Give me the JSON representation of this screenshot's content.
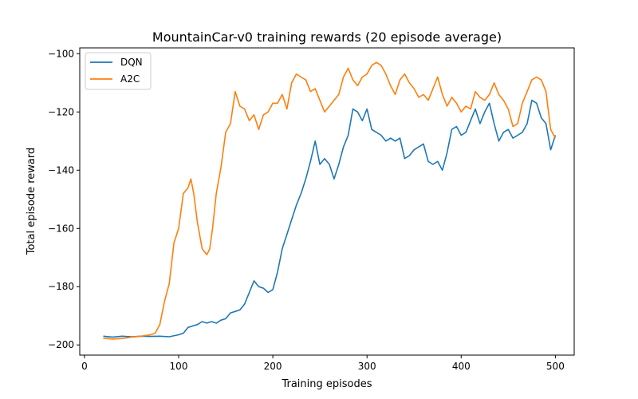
{
  "chart_data": {
    "type": "line",
    "title": "MountainCar-v0 training rewards (20 episode average)",
    "xlabel": "Training episodes",
    "ylabel": "Total episode reward",
    "xlim": [
      -5,
      520
    ],
    "ylim": [
      -203.5,
      -98
    ],
    "xticks": [
      0,
      100,
      200,
      300,
      400,
      500
    ],
    "yticks": [
      -200,
      -180,
      -160,
      -140,
      -120,
      -100
    ],
    "xtick_labels": [
      "0",
      "100",
      "200",
      "300",
      "400",
      "500"
    ],
    "ytick_labels": [
      "−200",
      "−180",
      "−160",
      "−140",
      "−120",
      "−100"
    ],
    "grid": false,
    "legend_position": "top-left",
    "series": [
      {
        "name": "DQN",
        "color": "#1f77b4",
        "points": [
          [
            20,
            -197
          ],
          [
            30,
            -197.3
          ],
          [
            40,
            -197
          ],
          [
            50,
            -197.2
          ],
          [
            60,
            -197
          ],
          [
            70,
            -197.1
          ],
          [
            80,
            -197
          ],
          [
            90,
            -197.2
          ],
          [
            100,
            -196.5
          ],
          [
            105,
            -196
          ],
          [
            110,
            -194
          ],
          [
            115,
            -193.5
          ],
          [
            120,
            -193
          ],
          [
            125,
            -192
          ],
          [
            130,
            -192.5
          ],
          [
            135,
            -192
          ],
          [
            140,
            -192.5
          ],
          [
            145,
            -191.5
          ],
          [
            150,
            -191
          ],
          [
            155,
            -189
          ],
          [
            160,
            -188.5
          ],
          [
            165,
            -188
          ],
          [
            170,
            -186
          ],
          [
            175,
            -182
          ],
          [
            180,
            -178
          ],
          [
            185,
            -180
          ],
          [
            190,
            -180.5
          ],
          [
            195,
            -182
          ],
          [
            200,
            -181
          ],
          [
            205,
            -175
          ],
          [
            210,
            -167
          ],
          [
            215,
            -162
          ],
          [
            220,
            -157
          ],
          [
            225,
            -152
          ],
          [
            230,
            -148
          ],
          [
            235,
            -143
          ],
          [
            240,
            -137
          ],
          [
            245,
            -130
          ],
          [
            250,
            -138
          ],
          [
            255,
            -136
          ],
          [
            260,
            -138
          ],
          [
            265,
            -143
          ],
          [
            270,
            -138
          ],
          [
            275,
            -132
          ],
          [
            280,
            -128
          ],
          [
            285,
            -119
          ],
          [
            290,
            -120
          ],
          [
            295,
            -123
          ],
          [
            300,
            -119
          ],
          [
            305,
            -126
          ],
          [
            310,
            -127
          ],
          [
            315,
            -128
          ],
          [
            320,
            -130
          ],
          [
            325,
            -129
          ],
          [
            330,
            -130
          ],
          [
            335,
            -129
          ],
          [
            340,
            -136
          ],
          [
            345,
            -135
          ],
          [
            350,
            -133
          ],
          [
            355,
            -132
          ],
          [
            360,
            -131
          ],
          [
            365,
            -137
          ],
          [
            370,
            -138
          ],
          [
            375,
            -137
          ],
          [
            380,
            -140
          ],
          [
            385,
            -134
          ],
          [
            390,
            -126
          ],
          [
            395,
            -125
          ],
          [
            400,
            -128
          ],
          [
            405,
            -127
          ],
          [
            410,
            -123
          ],
          [
            415,
            -119
          ],
          [
            420,
            -124
          ],
          [
            425,
            -120
          ],
          [
            430,
            -117
          ],
          [
            435,
            -124
          ],
          [
            440,
            -130
          ],
          [
            445,
            -127
          ],
          [
            450,
            -126
          ],
          [
            455,
            -129
          ],
          [
            460,
            -128
          ],
          [
            465,
            -127
          ],
          [
            470,
            -124
          ],
          [
            475,
            -116
          ],
          [
            480,
            -117
          ],
          [
            485,
            -122
          ],
          [
            490,
            -124
          ],
          [
            495,
            -133
          ],
          [
            500,
            -128
          ]
        ]
      },
      {
        "name": "A2C",
        "color": "#ff7f0e",
        "points": [
          [
            20,
            -197.7
          ],
          [
            30,
            -198
          ],
          [
            40,
            -197.8
          ],
          [
            50,
            -197.3
          ],
          [
            60,
            -197
          ],
          [
            70,
            -196.5
          ],
          [
            75,
            -196
          ],
          [
            80,
            -193
          ],
          [
            85,
            -185
          ],
          [
            90,
            -179
          ],
          [
            95,
            -165
          ],
          [
            100,
            -160
          ],
          [
            105,
            -148
          ],
          [
            110,
            -146
          ],
          [
            113,
            -143
          ],
          [
            116,
            -148
          ],
          [
            120,
            -158
          ],
          [
            125,
            -167
          ],
          [
            130,
            -169
          ],
          [
            133,
            -167
          ],
          [
            136,
            -160
          ],
          [
            140,
            -148
          ],
          [
            145,
            -139
          ],
          [
            150,
            -127
          ],
          [
            155,
            -124
          ],
          [
            160,
            -113
          ],
          [
            165,
            -118
          ],
          [
            170,
            -119
          ],
          [
            175,
            -123
          ],
          [
            180,
            -121
          ],
          [
            185,
            -126
          ],
          [
            190,
            -121
          ],
          [
            195,
            -120
          ],
          [
            200,
            -117
          ],
          [
            205,
            -117
          ],
          [
            210,
            -114
          ],
          [
            215,
            -119
          ],
          [
            220,
            -110
          ],
          [
            225,
            -107
          ],
          [
            230,
            -108
          ],
          [
            235,
            -109
          ],
          [
            240,
            -113
          ],
          [
            245,
            -112
          ],
          [
            250,
            -116
          ],
          [
            255,
            -120
          ],
          [
            260,
            -118
          ],
          [
            265,
            -116
          ],
          [
            270,
            -114
          ],
          [
            275,
            -108
          ],
          [
            280,
            -105
          ],
          [
            285,
            -109
          ],
          [
            290,
            -111
          ],
          [
            295,
            -108
          ],
          [
            300,
            -107
          ],
          [
            305,
            -104
          ],
          [
            310,
            -103
          ],
          [
            315,
            -104
          ],
          [
            320,
            -107
          ],
          [
            325,
            -111
          ],
          [
            330,
            -114
          ],
          [
            335,
            -109
          ],
          [
            340,
            -107
          ],
          [
            345,
            -110
          ],
          [
            350,
            -112
          ],
          [
            355,
            -115
          ],
          [
            360,
            -114
          ],
          [
            365,
            -116
          ],
          [
            370,
            -112
          ],
          [
            375,
            -108
          ],
          [
            380,
            -114
          ],
          [
            385,
            -118
          ],
          [
            390,
            -115
          ],
          [
            395,
            -117
          ],
          [
            400,
            -120
          ],
          [
            405,
            -118
          ],
          [
            410,
            -119
          ],
          [
            415,
            -113
          ],
          [
            420,
            -115
          ],
          [
            425,
            -116
          ],
          [
            430,
            -114
          ],
          [
            435,
            -110
          ],
          [
            440,
            -114
          ],
          [
            445,
            -116
          ],
          [
            450,
            -119
          ],
          [
            455,
            -125
          ],
          [
            460,
            -124
          ],
          [
            465,
            -117
          ],
          [
            470,
            -113
          ],
          [
            475,
            -109
          ],
          [
            480,
            -108
          ],
          [
            485,
            -109
          ],
          [
            490,
            -113
          ],
          [
            495,
            -126
          ],
          [
            500,
            -129
          ]
        ]
      }
    ]
  }
}
